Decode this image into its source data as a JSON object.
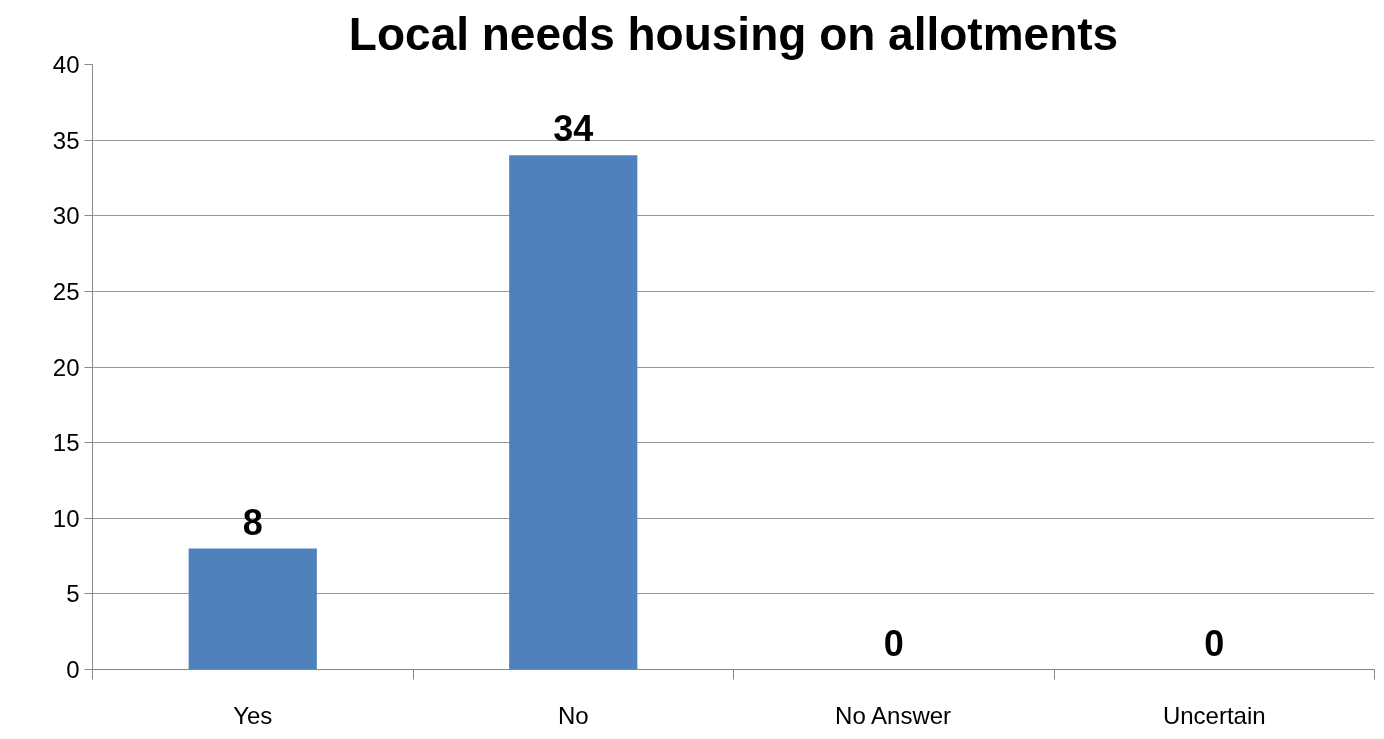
{
  "chart_data": {
    "type": "bar",
    "title": "Local needs housing on allotments",
    "categories": [
      "Yes",
      "No",
      "No Answer",
      "Uncertain"
    ],
    "values": [
      8,
      34,
      0,
      0
    ],
    "color": "#4f81bd",
    "ylim": [
      0,
      40
    ],
    "yticks": [
      0,
      5,
      10,
      15,
      20,
      25,
      30,
      35,
      40
    ],
    "grid": "y",
    "data_labels": true
  }
}
